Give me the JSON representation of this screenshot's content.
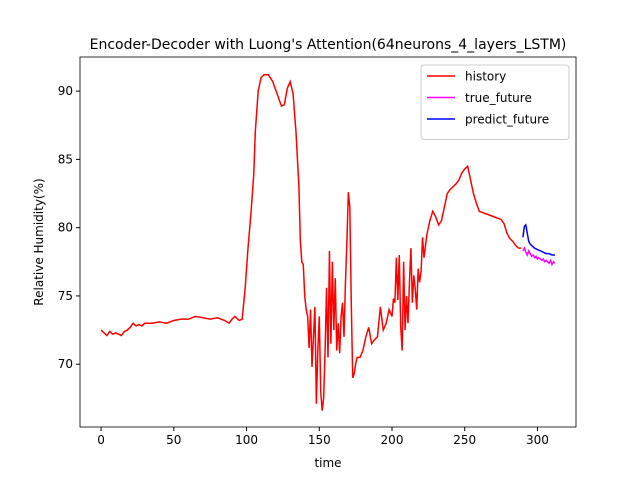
{
  "chart_data": {
    "type": "line",
    "title": "Encoder-Decoder with Luong's Attention(64neurons_4_layers_LSTM)",
    "x_label": "time",
    "y_label": "Relative Humidity(%)",
    "xlim": [
      -14.5,
      326.5
    ],
    "ylim": [
      65.4,
      92.5
    ],
    "xticks": [
      0,
      50,
      100,
      150,
      200,
      250,
      300
    ],
    "yticks": [
      70,
      75,
      80,
      85,
      90
    ],
    "legend": "upper right",
    "series": [
      {
        "name": "history",
        "color": "#ff0000",
        "x": [
          0,
          2,
          4,
          6,
          8,
          10,
          12,
          14,
          16,
          18,
          20,
          22,
          24,
          26,
          28,
          30,
          35,
          40,
          45,
          50,
          55,
          60,
          65,
          70,
          75,
          80,
          85,
          88,
          90,
          92,
          95,
          97,
          99,
          101,
          103,
          105,
          106,
          107,
          108,
          110,
          112,
          115,
          118,
          121,
          124,
          126,
          128,
          130,
          132,
          134,
          136,
          137,
          138,
          139,
          140,
          141,
          142,
          143,
          144,
          145,
          146,
          147,
          148,
          149,
          150,
          151,
          152,
          153,
          154,
          155,
          156,
          157,
          158,
          159,
          160,
          161,
          162,
          163,
          164,
          165,
          166,
          167,
          168,
          169,
          170,
          171,
          172,
          173,
          174,
          175,
          176,
          178,
          180,
          182,
          184,
          186,
          188,
          190,
          192,
          194,
          196,
          198,
          200,
          201,
          202,
          203,
          204,
          205,
          206,
          207,
          208,
          209,
          210,
          211,
          212,
          213,
          214,
          215,
          216,
          217,
          218,
          219,
          220,
          221,
          222,
          224,
          226,
          228,
          230,
          232,
          234,
          236,
          238,
          240,
          242,
          244,
          246,
          248,
          250,
          252,
          254,
          256,
          258,
          260,
          265,
          270,
          275,
          277,
          279,
          281,
          283,
          285,
          287,
          289
        ],
        "values": [
          72.5,
          72.3,
          72.1,
          72.4,
          72.2,
          72.3,
          72.2,
          72.1,
          72.4,
          72.5,
          72.7,
          73.0,
          72.8,
          72.9,
          72.8,
          73.0,
          73.0,
          73.1,
          73.0,
          73.2,
          73.3,
          73.3,
          73.5,
          73.4,
          73.3,
          73.4,
          73.2,
          73.0,
          73.3,
          73.5,
          73.2,
          73.3,
          75.5,
          78.5,
          81.0,
          84.0,
          87.0,
          88.5,
          90.0,
          91.0,
          91.2,
          91.2,
          90.7,
          89.8,
          88.9,
          89.0,
          90.2,
          90.7,
          89.8,
          87.0,
          83.0,
          79.0,
          77.5,
          77.3,
          75.0,
          74.0,
          73.5,
          71.2,
          74.0,
          69.8,
          72.0,
          74.2,
          67.1,
          71.0,
          73.5,
          68.0,
          66.6,
          67.5,
          71.0,
          75.6,
          70.5,
          78.3,
          71.5,
          77.5,
          72.5,
          76.3,
          71.0,
          73.0,
          70.8,
          73.5,
          74.5,
          72.0,
          76.0,
          79.0,
          82.6,
          81.5,
          74.5,
          69.0,
          69.3,
          70.0,
          70.5,
          70.5,
          71.0,
          72.0,
          72.7,
          71.5,
          71.8,
          72.0,
          74.2,
          72.5,
          73.0,
          74.0,
          73.5,
          74.8,
          74.5,
          77.8,
          74.7,
          78.0,
          72.7,
          71.0,
          77.5,
          72.5,
          75.0,
          73.0,
          76.0,
          78.5,
          74.5,
          76.5,
          75.5,
          74.0,
          77.0,
          76.0,
          76.8,
          79.3,
          77.8,
          79.5,
          80.5,
          81.2,
          80.8,
          80.2,
          80.5,
          81.5,
          82.5,
          82.8,
          83.0,
          83.2,
          83.5,
          84.0,
          84.3,
          84.5,
          83.5,
          82.5,
          81.8,
          81.2,
          81.0,
          80.8,
          80.6,
          80.3,
          79.6,
          79.2,
          79.0,
          78.7,
          78.5,
          78.5
        ]
      },
      {
        "name": "true_future",
        "color": "#ff00ff",
        "x": [
          290,
          291,
          292,
          293,
          294,
          295,
          296,
          297,
          298,
          299,
          300,
          301,
          302,
          303,
          304,
          305,
          306,
          307,
          308,
          309,
          310,
          311,
          312
        ],
        "values": [
          78.3,
          78.5,
          78.2,
          78.0,
          78.3,
          78.1,
          77.9,
          78.0,
          77.8,
          77.9,
          77.7,
          77.8,
          77.7,
          77.6,
          77.7,
          77.5,
          77.6,
          77.5,
          77.4,
          77.6,
          77.3,
          77.5,
          77.4
        ]
      },
      {
        "name": "predict_future",
        "color": "#0000ff",
        "x": [
          290,
          291,
          292,
          293,
          294,
          295,
          296,
          297,
          298,
          300,
          302,
          304,
          306,
          308,
          310,
          312
        ],
        "values": [
          79.3,
          80.1,
          80.2,
          79.6,
          79.0,
          78.8,
          78.7,
          78.6,
          78.5,
          78.4,
          78.3,
          78.2,
          78.1,
          78.1,
          78.0,
          78.0
        ]
      }
    ]
  }
}
